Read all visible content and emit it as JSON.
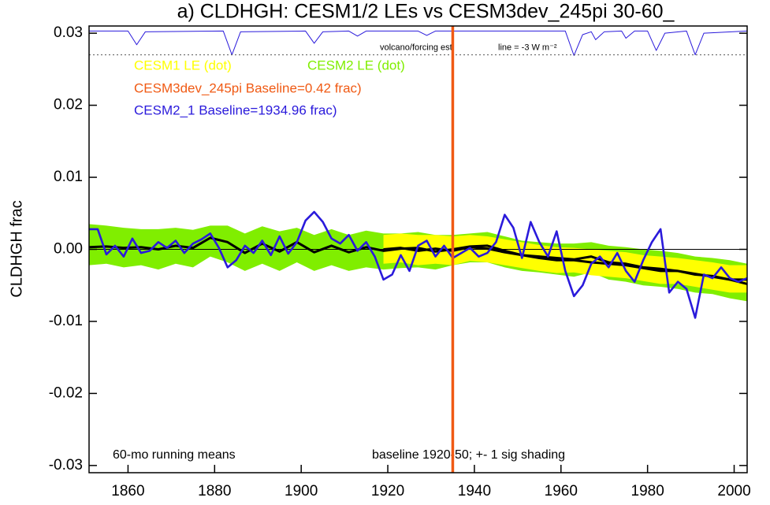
{
  "chart_data": {
    "type": "line",
    "title": "a) CLDHGH: CESM1/2 LEs vs CESM3dev_245pi 30-60_",
    "y_label": "CLDHGH frac",
    "xlim": [
      1851,
      2003
    ],
    "xticks": [
      1860,
      1880,
      1900,
      1920,
      1940,
      1960,
      1980,
      2000
    ],
    "ylim": [
      -0.031,
      0.031
    ],
    "yticks": [
      0.03,
      0.02,
      0.01,
      {
        "value": 0,
        "label": "0.00"
      },
      -0.01,
      -0.02,
      -0.03
    ],
    "reference_line_y": 0,
    "annotations": [
      "60-mo running means",
      "baseline 1920-50; +- 1 sig shading"
    ],
    "bands": [
      {
        "name": "CESM2 LE (dot)",
        "color": "#80ee00",
        "line_color": "#000000",
        "x": [
          1851,
          1855,
          1859,
          1863,
          1867,
          1871,
          1875,
          1879,
          1883,
          1887,
          1891,
          1895,
          1899,
          1903,
          1907,
          1911,
          1915,
          1919,
          1923,
          1927,
          1931,
          1935,
          1939,
          1943,
          1947,
          1951,
          1955,
          1959,
          1963,
          1967,
          1971,
          1975,
          1979,
          1983,
          1987,
          1991,
          1995,
          1999,
          2003
        ],
        "mean": [
          0.0003,
          0.0004,
          0.0002,
          0.0003,
          0.0,
          0.0005,
          0.0002,
          0.0016,
          0.001,
          -0.0005,
          0.0008,
          -0.0003,
          0.001,
          -0.0004,
          0.0005,
          -0.0004,
          0.0003,
          -0.0002,
          0.0001,
          0.0002,
          -0.0003,
          0.0,
          0.0004,
          0.0005,
          -0.0002,
          -0.0008,
          -0.001,
          -0.0012,
          -0.0014,
          -0.001,
          -0.0018,
          -0.002,
          -0.0025,
          -0.0027,
          -0.003,
          -0.0035,
          -0.0037,
          -0.0042,
          -0.0048
        ],
        "upper": [
          0.0035,
          0.0033,
          0.003,
          0.0028,
          0.0028,
          0.003,
          0.0027,
          0.0033,
          0.0033,
          0.0022,
          0.0032,
          0.0025,
          0.003,
          0.002,
          0.0028,
          0.002,
          0.0026,
          0.0022,
          0.0022,
          0.0024,
          0.002,
          0.002,
          0.0022,
          0.0024,
          0.0018,
          0.0012,
          0.001,
          0.0008,
          0.0008,
          0.001,
          0.0005,
          0.0003,
          0.0,
          -0.0002,
          -0.0005,
          -0.001,
          -0.0012,
          -0.0015,
          -0.002
        ],
        "lower": [
          -0.0022,
          -0.002,
          -0.0025,
          -0.0022,
          -0.0028,
          -0.002,
          -0.0025,
          -0.001,
          -0.0018,
          -0.003,
          -0.002,
          -0.003,
          -0.0018,
          -0.003,
          -0.0022,
          -0.003,
          -0.0025,
          -0.0028,
          -0.0026,
          -0.0025,
          -0.0028,
          -0.0022,
          -0.0018,
          -0.0018,
          -0.0025,
          -0.003,
          -0.0032,
          -0.0035,
          -0.0038,
          -0.0032,
          -0.0042,
          -0.0045,
          -0.005,
          -0.0052,
          -0.0055,
          -0.006,
          -0.0062,
          -0.0068,
          -0.0072
        ]
      },
      {
        "name": "CESM1 LE (dot)",
        "color": "#ffff00",
        "line_color": "#000000",
        "x": [
          1851,
          1855,
          1859,
          1863,
          1867,
          1871,
          1875,
          1879,
          1883,
          1887,
          1891,
          1895,
          1899,
          1903,
          1907,
          1911,
          1915,
          1919,
          1923,
          1927,
          1931,
          1935,
          1939,
          1943,
          1947,
          1951,
          1955,
          1959,
          1963,
          1967,
          1971,
          1975,
          1979,
          1983,
          1987,
          1991,
          1995,
          1999,
          2003
        ],
        "mean": [
          null,
          null,
          null,
          null,
          null,
          null,
          null,
          null,
          null,
          null,
          null,
          null,
          null,
          null,
          null,
          null,
          null,
          0.0,
          0.0002,
          -0.0002,
          0.0001,
          -0.0002,
          0.0003,
          0.0001,
          -0.0004,
          -0.0008,
          -0.0012,
          -0.0015,
          -0.0015,
          -0.0018,
          -0.002,
          -0.0022,
          -0.0026,
          -0.003,
          -0.003,
          -0.0034,
          -0.0038,
          -0.0042,
          -0.0042
        ],
        "upper": [
          null,
          null,
          null,
          null,
          null,
          null,
          null,
          null,
          null,
          null,
          null,
          null,
          null,
          null,
          null,
          null,
          null,
          0.002,
          0.0022,
          0.002,
          0.002,
          0.0018,
          0.002,
          0.0018,
          0.0014,
          0.001,
          0.0006,
          0.0003,
          0.0002,
          0.0,
          -0.0002,
          -0.0004,
          -0.0008,
          -0.001,
          -0.0012,
          -0.0015,
          -0.0018,
          -0.0022,
          -0.0022
        ],
        "lower": [
          null,
          null,
          null,
          null,
          null,
          null,
          null,
          null,
          null,
          null,
          null,
          null,
          null,
          null,
          null,
          null,
          null,
          -0.002,
          -0.0018,
          -0.0022,
          -0.002,
          -0.0022,
          -0.0016,
          -0.0018,
          -0.0022,
          -0.0026,
          -0.003,
          -0.0033,
          -0.0032,
          -0.0036,
          -0.0038,
          -0.004,
          -0.0044,
          -0.0048,
          -0.0048,
          -0.0052,
          -0.0056,
          -0.006,
          -0.006
        ]
      }
    ],
    "series": [
      {
        "name": "CESM2_1 Baseline=1934.96 frac)",
        "color": "#2a1adb",
        "x": [
          1851,
          1853,
          1855,
          1857,
          1859,
          1861,
          1863,
          1865,
          1867,
          1869,
          1871,
          1873,
          1875,
          1877,
          1879,
          1881,
          1883,
          1885,
          1887,
          1889,
          1891,
          1893,
          1895,
          1897,
          1899,
          1901,
          1903,
          1905,
          1907,
          1909,
          1911,
          1913,
          1915,
          1917,
          1919,
          1921,
          1923,
          1925,
          1927,
          1929,
          1931,
          1933,
          1935,
          1937,
          1939,
          1941,
          1943,
          1945,
          1947,
          1949,
          1951,
          1953,
          1955,
          1957,
          1959,
          1961,
          1963,
          1965,
          1967,
          1969,
          1971,
          1973,
          1975,
          1977,
          1979,
          1981,
          1983,
          1985,
          1987,
          1989,
          1991,
          1993,
          1995,
          1997,
          1999,
          2001,
          2003
        ],
        "values": [
          0.0028,
          0.0028,
          -0.0007,
          0.0005,
          -0.001,
          0.0015,
          -0.0005,
          -0.0002,
          0.001,
          0.0002,
          0.0012,
          -0.0005,
          0.0008,
          0.0014,
          0.0022,
          0.0002,
          -0.0025,
          -0.0015,
          0.0005,
          -0.0005,
          0.0012,
          -0.0008,
          0.0018,
          -0.0006,
          0.001,
          0.004,
          0.0052,
          0.0038,
          0.0015,
          0.0008,
          0.002,
          -0.0002,
          0.001,
          -0.001,
          -0.0042,
          -0.0035,
          -0.0008,
          -0.003,
          0.0005,
          0.0012,
          -0.001,
          0.0005,
          -0.0012,
          -0.0005,
          0.0002,
          -0.001,
          -0.0005,
          0.001,
          0.0048,
          0.003,
          -0.0012,
          0.0038,
          0.001,
          -0.001,
          0.0025,
          -0.003,
          -0.0065,
          -0.005,
          -0.002,
          -0.001,
          -0.0025,
          -0.0005,
          -0.003,
          -0.0045,
          -0.0015,
          0.001,
          0.0028,
          -0.006,
          -0.0045,
          -0.0055,
          -0.0095,
          -0.0035,
          -0.004,
          -0.0025,
          -0.004,
          -0.0045,
          -0.004
        ]
      }
    ],
    "vertical_line": {
      "name": "CESM3dev_245pi Baseline=0.42 frac)",
      "color": "#f05a14",
      "x": 1935
    },
    "volcano": {
      "label": "volcano/forcing est.",
      "ref_label": "line = -3 W m⁻²",
      "color": "#2a1adb",
      "ref_y": 0.027,
      "x": [
        1851,
        1860,
        1862,
        1864,
        1882,
        1884,
        1886,
        1901,
        1903,
        1905,
        1911,
        1913,
        1915,
        1927,
        1929,
        1931,
        1961,
        1963,
        1965,
        1967,
        1968,
        1970,
        1974,
        1975,
        1977,
        1980,
        1982,
        1984,
        1989,
        1991,
        1993,
        2003
      ],
      "values": [
        0.0303,
        0.0303,
        0.0284,
        0.0302,
        0.0303,
        0.027,
        0.0302,
        0.0303,
        0.0286,
        0.0302,
        0.0303,
        0.0296,
        0.0303,
        0.0303,
        0.0297,
        0.0303,
        0.0303,
        0.0269,
        0.0298,
        0.0302,
        0.0291,
        0.0302,
        0.0303,
        0.0293,
        0.0303,
        0.0303,
        0.0276,
        0.03,
        0.0303,
        0.027,
        0.03,
        0.0303
      ]
    }
  }
}
